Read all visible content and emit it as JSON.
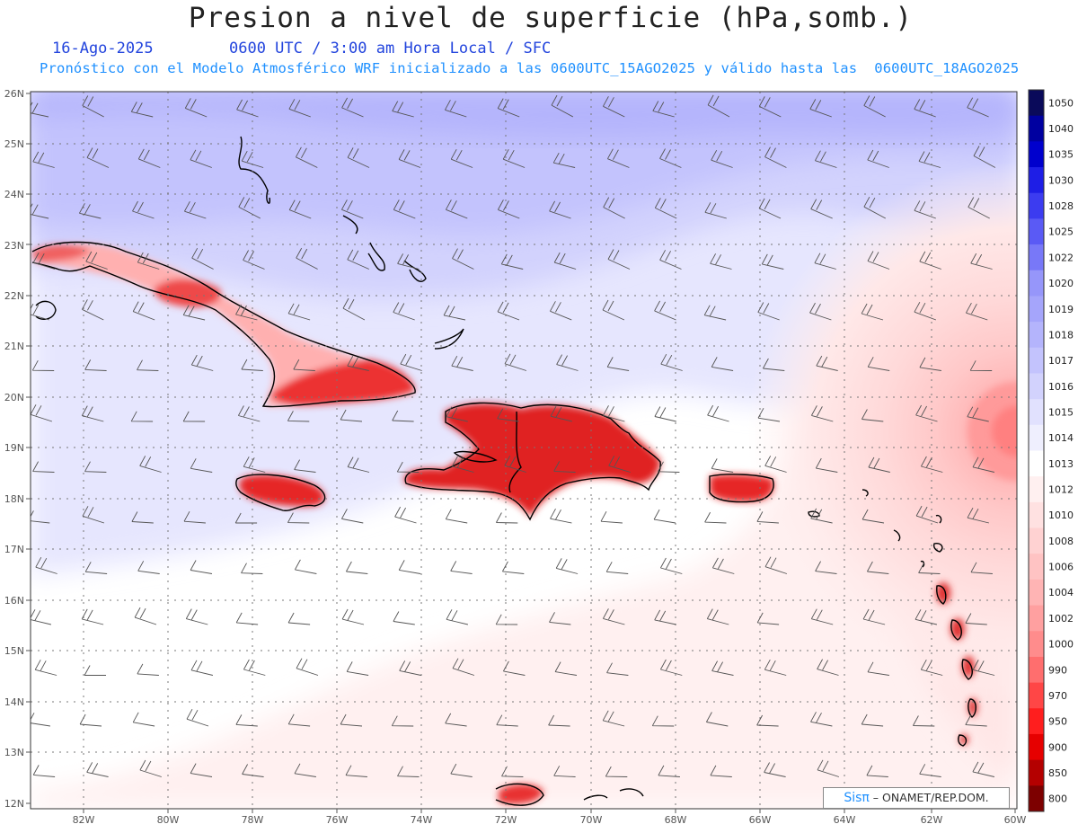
{
  "title": "Presion a nivel de superficie (hPa,somb.)",
  "date_label": "16-Ago-2025",
  "time_label": "0600 UTC / 3:00 am Hora Local / SFC",
  "model_label": "Pronóstico con el Modelo Atmosférico WRF inicializado a las 0600UTC_15AGO2025 y válido hasta las  0600UTC_18AGO2025",
  "lat_labels": [
    "26N",
    "25N",
    "24N",
    "23N",
    "22N",
    "21N",
    "20N",
    "19N",
    "18N",
    "17N",
    "16N",
    "15N",
    "14N",
    "13N",
    "12N"
  ],
  "lon_labels": [
    "82W",
    "80W",
    "78W",
    "76W",
    "74W",
    "72W",
    "70W",
    "68W",
    "66W",
    "64W",
    "62W",
    "60W"
  ],
  "colorbar": {
    "levels": [
      "1050",
      "1040",
      "1035",
      "1030",
      "1028",
      "1025",
      "1022",
      "1020",
      "1019",
      "1018",
      "1017",
      "1016",
      "1015",
      "1014",
      "1013",
      "1012",
      "1010",
      "1008",
      "1006",
      "1004",
      "1002",
      "1000",
      "990",
      "970",
      "950",
      "900",
      "850",
      "800"
    ],
    "colors": [
      "#0a0a5a",
      "#0000a0",
      "#0000cd",
      "#1e1ee6",
      "#3c3cf0",
      "#5a5af5",
      "#7878f8",
      "#9696fa",
      "#a5a5fb",
      "#b4b4fc",
      "#c3c3fd",
      "#d2d2fd",
      "#e1e1fe",
      "#efeffe",
      "#ffffff",
      "#fff0f0",
      "#ffe1e1",
      "#ffd2d2",
      "#ffc3c3",
      "#ffb4b4",
      "#ffa0a0",
      "#ff8c8c",
      "#ff6e6e",
      "#ff4646",
      "#ff1e1e",
      "#e60000",
      "#b40000",
      "#7d0000"
    ]
  },
  "credit": {
    "logo": "Sisπ",
    "text": "– ONAMET/REP.DOM."
  }
}
